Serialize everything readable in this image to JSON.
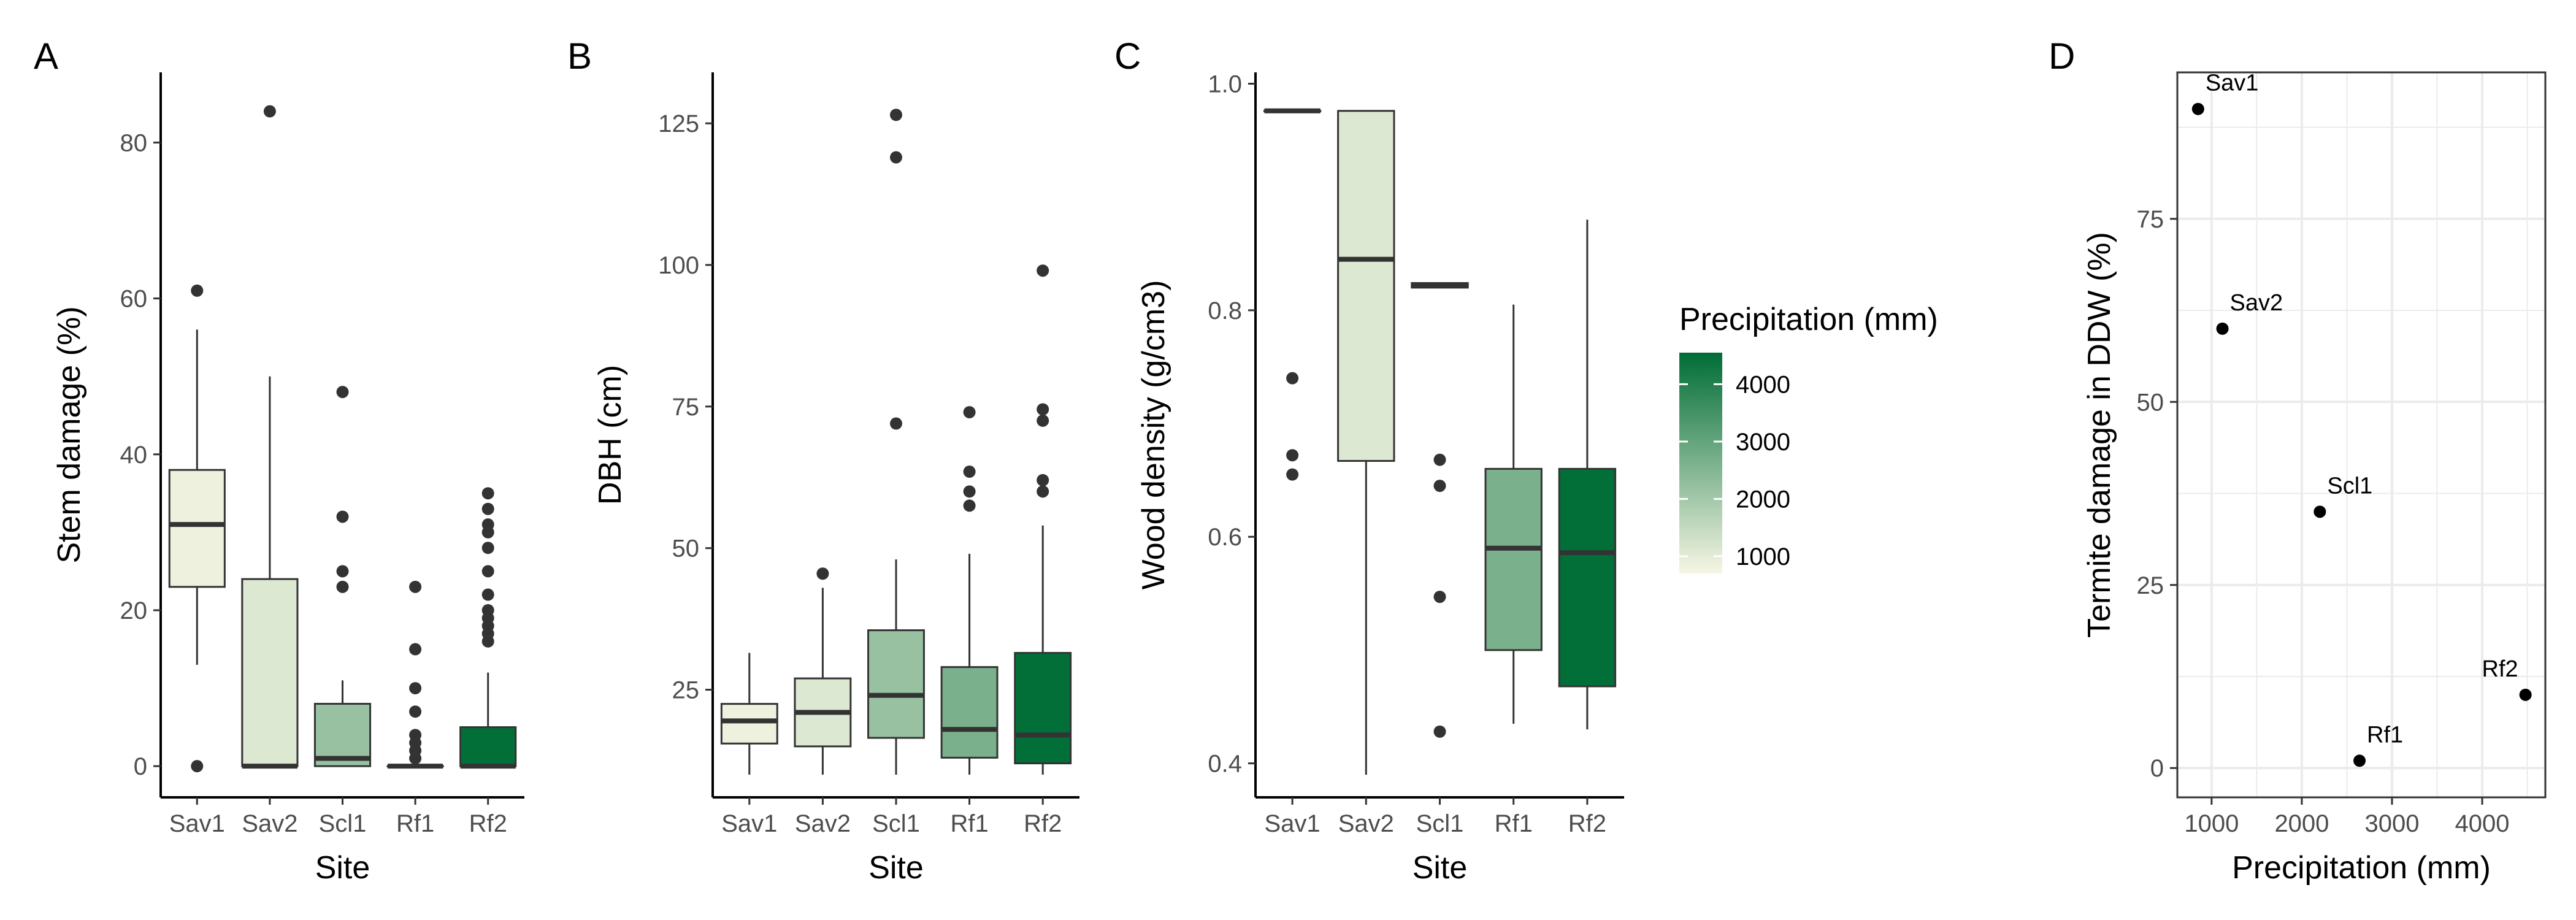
{
  "chart_data": [
    {
      "panel": "A",
      "type": "box",
      "xlabel": "Site",
      "ylabel": "Stem damage (%)",
      "categories": [
        "Sav1",
        "Sav2",
        "Scl1",
        "Rf1",
        "Rf2"
      ],
      "ylim": [
        -4,
        89
      ],
      "yticks": [
        0,
        20,
        40,
        60,
        80
      ],
      "boxes": [
        {
          "q1": 23,
          "median": 31,
          "q3": 38,
          "whisker_low": 13,
          "whisker_high": 56,
          "outliers": [
            0,
            61
          ],
          "precip": 850
        },
        {
          "q1": 0,
          "median": 0,
          "q3": 24,
          "whisker_low": 0,
          "whisker_high": 50,
          "outliers": [
            84
          ],
          "precip": 1100
        },
        {
          "q1": 0,
          "median": 1,
          "q3": 8,
          "whisker_low": 0,
          "whisker_high": 11,
          "outliers": [
            23,
            25,
            32,
            48
          ],
          "precip": 2200
        },
        {
          "q1": 0,
          "median": 0,
          "q3": 0,
          "whisker_low": 0,
          "whisker_high": 0,
          "outliers": [
            1,
            2,
            3,
            4,
            7,
            10,
            15,
            23
          ],
          "precip": 2650
        },
        {
          "q1": 0,
          "median": 0,
          "q3": 5,
          "whisker_low": 0,
          "whisker_high": 12,
          "outliers": [
            16,
            17,
            18,
            19,
            20,
            22,
            25,
            28,
            30,
            31,
            33,
            35
          ],
          "precip": 4500
        }
      ]
    },
    {
      "panel": "B",
      "type": "box",
      "xlabel": "Site",
      "ylabel": "DBH (cm)",
      "categories": [
        "Sav1",
        "Sav2",
        "Scl1",
        "Rf1",
        "Rf2"
      ],
      "ylim": [
        6,
        134
      ],
      "yticks": [
        25,
        50,
        75,
        100,
        125
      ],
      "boxes": [
        {
          "q1": 15.5,
          "median": 19.5,
          "q3": 22.5,
          "whisker_low": 10,
          "whisker_high": 31.5,
          "outliers": [],
          "precip": 850
        },
        {
          "q1": 15,
          "median": 21,
          "q3": 27,
          "whisker_low": 10,
          "whisker_high": 43,
          "outliers": [
            45.5
          ],
          "precip": 1100
        },
        {
          "q1": 16.5,
          "median": 24,
          "q3": 35.5,
          "whisker_low": 10,
          "whisker_high": 48,
          "outliers": [
            72,
            119,
            126.5
          ],
          "precip": 2200
        },
        {
          "q1": 13,
          "median": 18,
          "q3": 29,
          "whisker_low": 10,
          "whisker_high": 49,
          "outliers": [
            57.5,
            60,
            63.5,
            74
          ],
          "precip": 2650
        },
        {
          "q1": 12,
          "median": 17,
          "q3": 31.5,
          "whisker_low": 10,
          "whisker_high": 54,
          "outliers": [
            60,
            62,
            72.5,
            74.5,
            99
          ],
          "precip": 4500
        }
      ]
    },
    {
      "panel": "C",
      "type": "box",
      "xlabel": "Site",
      "ylabel": "Wood density (g/cm3)",
      "categories": [
        "Sav1",
        "Sav2",
        "Scl1",
        "Rf1",
        "Rf2"
      ],
      "ylim": [
        0.37,
        1.01
      ],
      "yticks": [
        0.4,
        0.6,
        0.8,
        1.0
      ],
      "ytick_labels": [
        "0.4",
        "0.6",
        "0.8",
        "1.0"
      ],
      "boxes": [
        {
          "q1": 0.976,
          "median": 0.976,
          "q3": 0.976,
          "whisker_low": 0.976,
          "whisker_high": 0.976,
          "outliers": [
            0.655,
            0.672,
            0.74
          ],
          "precip": 850
        },
        {
          "q1": 0.667,
          "median": 0.845,
          "q3": 0.976,
          "whisker_low": 0.39,
          "whisker_high": 0.976,
          "outliers": [],
          "precip": 1100
        },
        {
          "q1": 0.82,
          "median": 0.822,
          "q3": 0.824,
          "whisker_low": 0.82,
          "whisker_high": 0.824,
          "outliers": [
            0.428,
            0.547,
            0.645,
            0.668
          ],
          "precip": 2200
        },
        {
          "q1": 0.5,
          "median": 0.59,
          "q3": 0.66,
          "whisker_low": 0.435,
          "whisker_high": 0.805,
          "outliers": [],
          "precip": 2650
        },
        {
          "q1": 0.468,
          "median": 0.586,
          "q3": 0.66,
          "whisker_low": 0.43,
          "whisker_high": 0.88,
          "outliers": [],
          "precip": 4500
        }
      ]
    },
    {
      "panel": "D",
      "type": "scatter",
      "xlabel": "Precipitation (mm)",
      "ylabel": "Termite damage in DDW (%)",
      "xlim": [
        620,
        4700
      ],
      "ylim": [
        -4,
        95
      ],
      "xticks": [
        1000,
        2000,
        3000,
        4000
      ],
      "yticks": [
        0,
        25,
        50,
        75
      ],
      "grid": true,
      "points": [
        {
          "label": "Sav1",
          "x": 850,
          "y": 90
        },
        {
          "label": "Sav2",
          "x": 1120,
          "y": 60
        },
        {
          "label": "Scl1",
          "x": 2200,
          "y": 35
        },
        {
          "label": "Rf1",
          "x": 2640,
          "y": 1
        },
        {
          "label": "Rf2",
          "x": 4480,
          "y": 10
        }
      ]
    }
  ],
  "legend": {
    "title": "Precipitation (mm)",
    "min": 700,
    "max": 4550,
    "ticks": [
      1000,
      2000,
      3000,
      4000
    ],
    "colors": [
      "#f7f6e4",
      "#006d36"
    ]
  },
  "panel_tags": [
    "A",
    "B",
    "C",
    "D"
  ]
}
